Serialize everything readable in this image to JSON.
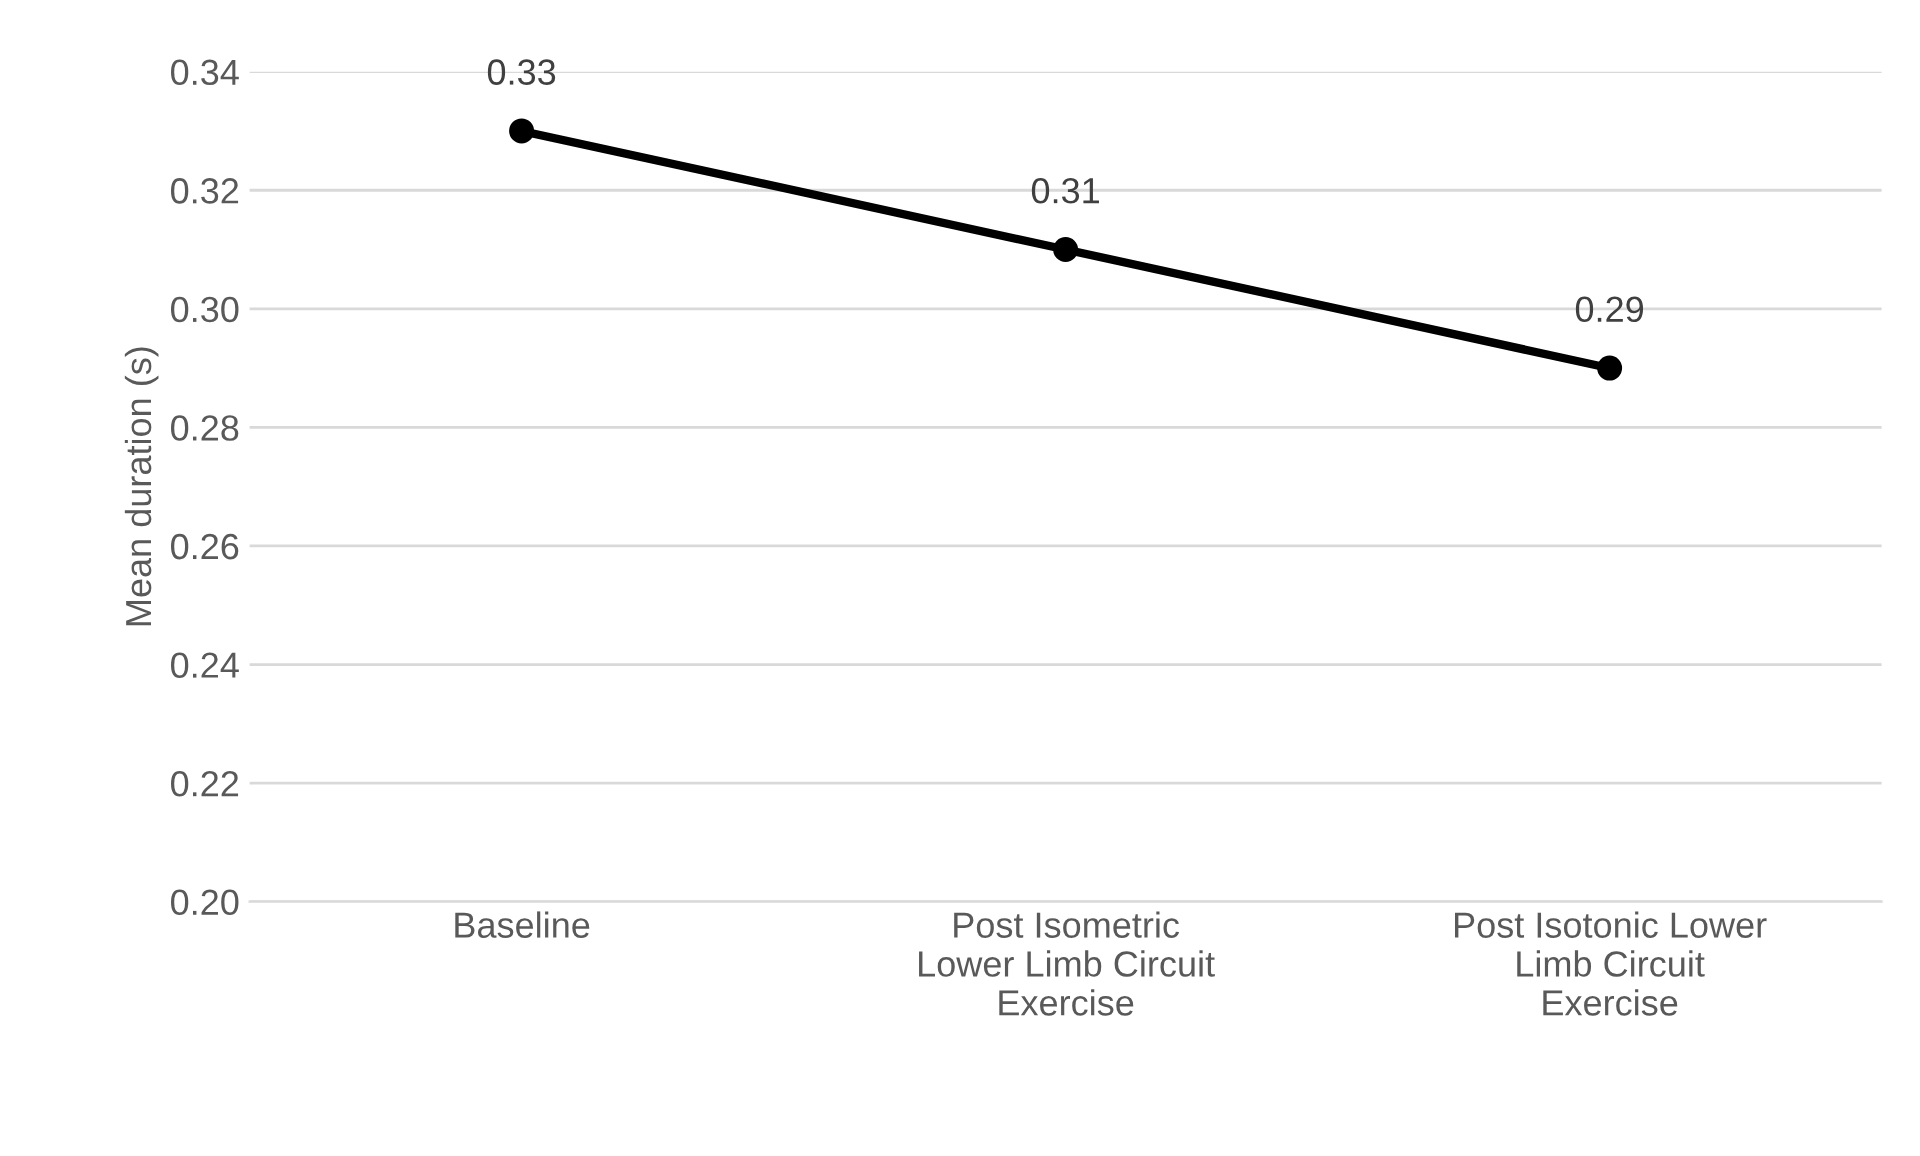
{
  "chart_data": {
    "type": "line",
    "ylabel": "Mean duration (s)",
    "categories": [
      "Baseline",
      "Post Isometric\nLower Limb Circuit\nExercise",
      "Post Isotonic Lower\nLimb Circuit\nExercise"
    ],
    "series": [
      {
        "color": "#000000",
        "values": [
          0.33,
          0.31,
          0.29
        ]
      }
    ],
    "ylim": [
      0.2,
      0.34
    ],
    "yticks": [
      {
        "value": 0.2,
        "label": "0.20"
      },
      {
        "value": 0.22,
        "label": "0.22"
      },
      {
        "value": 0.24,
        "label": "0.24"
      },
      {
        "value": 0.26,
        "label": "0.26"
      },
      {
        "value": 0.28,
        "label": "0.28"
      },
      {
        "value": 0.3,
        "label": "0.30"
      },
      {
        "value": 0.32,
        "label": "0.32"
      },
      {
        "value": 0.34,
        "label": "0.34"
      }
    ],
    "grid": "y",
    "marker": "circle",
    "line_style": "solid",
    "data_labels": true
  }
}
